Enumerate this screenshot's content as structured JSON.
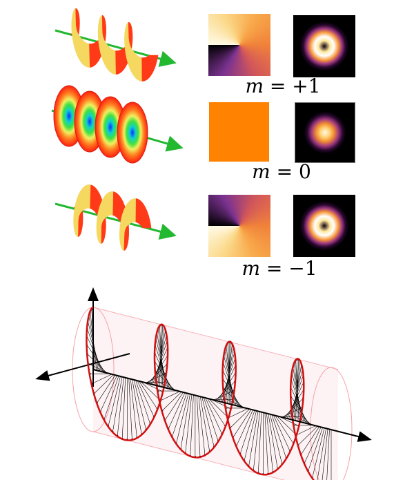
{
  "modes": [
    {
      "m": "m",
      "eq": "=",
      "value": "+1",
      "phase": "vortex-cw",
      "intensity": "ring"
    },
    {
      "m": "m",
      "eq": "=",
      "value": "0",
      "phase": "uniform",
      "intensity": "gaussian"
    },
    {
      "m": "m",
      "eq": "=",
      "value": "−1",
      "phase": "vortex-ccw",
      "intensity": "ring"
    }
  ],
  "colors": {
    "wavefront_outer": "#ff2a10",
    "wavefront_inner": "#f6f07a",
    "propagation_arrow": "#22b830",
    "helix": "#d01010",
    "cylinder": "#f4a0a8",
    "uniform_phase": "#ff8200"
  }
}
